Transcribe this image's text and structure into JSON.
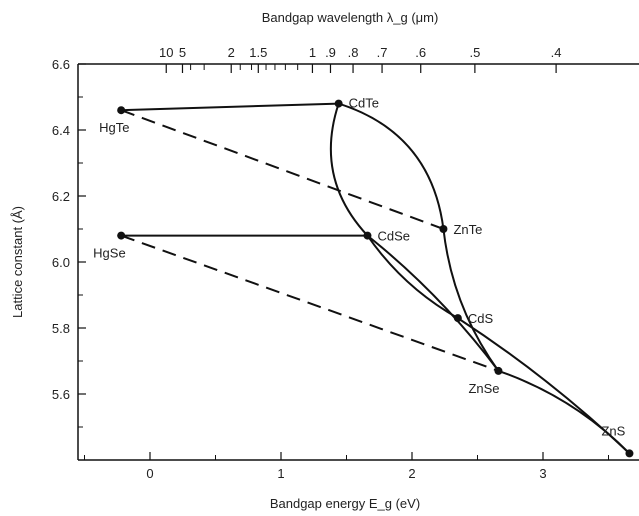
{
  "chart_data": {
    "type": "scatter",
    "title": "",
    "xlabel": "Bandgap energy E_g (eV)",
    "ylabel": "Lattice constant (Å)",
    "top_axis_label": "Bandgap wavelength λ_g (μm)",
    "xlim": [
      -0.5,
      3.7
    ],
    "ylim": [
      5.4,
      6.6
    ],
    "x_ticks": [
      "0",
      "1",
      "2",
      "3"
    ],
    "y_ticks": [
      "5.6",
      "5.8",
      "6.0",
      "6.2",
      "6.4",
      "6.6"
    ],
    "top_ticks": [
      "10",
      "5",
      "2",
      "1.5",
      "1",
      ".9",
      ".8",
      ".7",
      ".6",
      ".5",
      ".4"
    ],
    "grid": false,
    "points": [
      {
        "name": "HgTe",
        "x": -0.22,
        "y": 6.46
      },
      {
        "name": "CdTe",
        "x": 1.44,
        "y": 6.48
      },
      {
        "name": "ZnTe",
        "x": 2.24,
        "y": 6.1
      },
      {
        "name": "HgSe",
        "x": -0.22,
        "y": 6.08
      },
      {
        "name": "CdSe",
        "x": 1.66,
        "y": 6.08
      },
      {
        "name": "CdS",
        "x": 2.35,
        "y": 5.83
      },
      {
        "name": "ZnSe",
        "x": 2.66,
        "y": 5.67
      },
      {
        "name": "ZnS",
        "x": 3.66,
        "y": 5.42
      }
    ],
    "series": [
      {
        "style": "solid",
        "from": "HgTe",
        "to": "CdTe"
      },
      {
        "style": "dashed",
        "from": "HgTe",
        "to": "ZnTe"
      },
      {
        "style": "solid-curve",
        "from": "CdTe",
        "to": "ZnTe"
      },
      {
        "style": "solid-curve",
        "from": "CdTe",
        "to": "CdSe"
      },
      {
        "style": "solid",
        "from": "HgSe",
        "to": "CdSe"
      },
      {
        "style": "dashed",
        "from": "HgSe",
        "to": "ZnSe"
      },
      {
        "style": "solid-curve",
        "from": "ZnTe",
        "to": "ZnSe"
      },
      {
        "style": "solid-curve",
        "from": "CdSe",
        "to": "CdS"
      },
      {
        "style": "solid-curve",
        "from": "CdSe",
        "to": "ZnSe"
      },
      {
        "style": "solid-curve",
        "from": "CdS",
        "to": "ZnS"
      },
      {
        "style": "solid-curve",
        "from": "ZnSe",
        "to": "ZnS"
      }
    ]
  }
}
